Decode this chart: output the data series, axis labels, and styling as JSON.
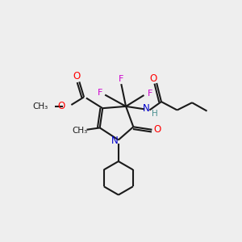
{
  "bg_color": "#eeeeee",
  "bond_color": "#1a1a1a",
  "atom_colors": {
    "O": "#ff0000",
    "N": "#0000cc",
    "F": "#cc00cc",
    "H": "#4a9090",
    "C": "#1a1a1a"
  }
}
